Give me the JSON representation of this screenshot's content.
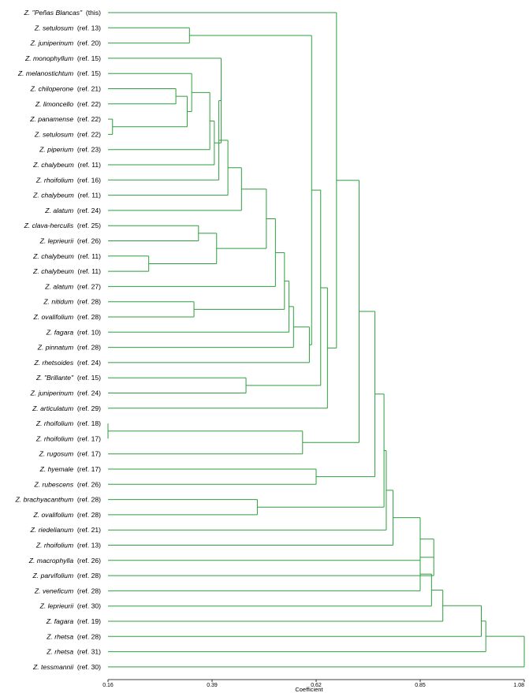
{
  "chart_data": {
    "type": "dendrogram",
    "xlabel": "Coefficient",
    "xlim": [
      0.16,
      1.08
    ],
    "ticks": [
      "0.16",
      "0.39",
      "0.62",
      "0.85",
      "1.08"
    ],
    "line_color": "#2e9e3e",
    "leaves": [
      {
        "sp": "Z. \"Peñas Blancas\"",
        "ref": "(this)"
      },
      {
        "sp": "Z. setulosum",
        "ref": "(ref. 13)"
      },
      {
        "sp": "Z. juniperinum",
        "ref": "(ref. 20)"
      },
      {
        "sp": "Z. monophyllum",
        "ref": "(ref. 15)"
      },
      {
        "sp": "Z. melanostichtum",
        "ref": "(ref. 15)"
      },
      {
        "sp": "Z. chiloperone",
        "ref": "(ref. 21)"
      },
      {
        "sp": "Z. limoncello",
        "ref": "(ref. 22)"
      },
      {
        "sp": "Z. panamense",
        "ref": "(ref. 22)"
      },
      {
        "sp": "Z. setulosum",
        "ref": "(ref. 22)"
      },
      {
        "sp": "Z. piperium",
        "ref": "(ref. 23)"
      },
      {
        "sp": "Z. chalybeum",
        "ref": "(ref. 11)"
      },
      {
        "sp": "Z. rhoifolium",
        "ref": "(ref. 16)"
      },
      {
        "sp": "Z. chalybeum",
        "ref": "(ref. 11)"
      },
      {
        "sp": "Z. alatum",
        "ref": "(ref. 24)"
      },
      {
        "sp": "Z. clava-herculis",
        "ref": "(ref. 25)"
      },
      {
        "sp": "Z. leprieurii",
        "ref": "(ref. 26)"
      },
      {
        "sp": "Z. chalybeum",
        "ref": "(ref. 11)"
      },
      {
        "sp": "Z. chalybeum",
        "ref": "(ref. 11)"
      },
      {
        "sp": "Z. alatum",
        "ref": "(ref. 27)"
      },
      {
        "sp": "Z. nitidum",
        "ref": "(ref. 28)"
      },
      {
        "sp": "Z. ovalifolium",
        "ref": "(ref. 28)"
      },
      {
        "sp": "Z. fagara",
        "ref": "(ref. 10)"
      },
      {
        "sp": "Z. pinnatum",
        "ref": "(ref. 28)"
      },
      {
        "sp": "Z. rhetsoides",
        "ref": "(ref. 24)"
      },
      {
        "sp": "Z. \"Brillante\"",
        "ref": "(ref. 15)"
      },
      {
        "sp": "Z. juniperinum",
        "ref": "(ref. 24)"
      },
      {
        "sp": "Z. articulatum",
        "ref": "(ref. 29)"
      },
      {
        "sp": "Z. rhoifolium",
        "ref": "(ref. 18)"
      },
      {
        "sp": "Z. rhoifolium",
        "ref": "(ref. 17)"
      },
      {
        "sp": "Z. rugosum",
        "ref": "(ref. 17)"
      },
      {
        "sp": "Z. hyemale",
        "ref": "(ref. 17)"
      },
      {
        "sp": "Z. rubescens",
        "ref": "(ref. 26)"
      },
      {
        "sp": "Z. brachyacanthum",
        "ref": "(ref. 28)"
      },
      {
        "sp": "Z. ovalifolium",
        "ref": "(ref. 28)"
      },
      {
        "sp": "Z. riedelianum",
        "ref": "(ref. 21)"
      },
      {
        "sp": "Z. rhoifolium",
        "ref": "(ref. 13)"
      },
      {
        "sp": "Z. macrophylla",
        "ref": "(ref. 26)"
      },
      {
        "sp": "Z. parvifolium",
        "ref": "(ref. 28)"
      },
      {
        "sp": "Z. veneficum",
        "ref": "(ref. 28)"
      },
      {
        "sp": "Z. leprieurii",
        "ref": "(ref. 30)"
      },
      {
        "sp": "Z. fagara",
        "ref": "(ref. 19)"
      },
      {
        "sp": "Z. rhetsa",
        "ref": "(ref. 28)"
      },
      {
        "sp": "Z. rhetsa",
        "ref": "(ref. 31)"
      },
      {
        "sp": "Z. tessmannii",
        "ref": "(ref. 30)"
      }
    ],
    "merges": [
      {
        "a": "L7",
        "b": "L8",
        "h": 0.17
      },
      {
        "a": "L27",
        "b": "L28",
        "h": 0.16
      },
      {
        "a": "L16",
        "b": "L17",
        "h": 0.25
      },
      {
        "a": "L5",
        "b": "L6",
        "h": 0.31
      },
      {
        "a": "L1",
        "b": "L2",
        "h": 0.34
      },
      {
        "a": "L19",
        "b": "L20",
        "h": 0.35
      },
      {
        "a": "M3",
        "b": "M0",
        "h": 0.335
      },
      {
        "a": "M6",
        "b": "L4",
        "h": 0.345
      },
      {
        "a": "L14",
        "b": "L15",
        "h": 0.36
      },
      {
        "a": "M7",
        "b": "L9",
        "h": 0.385
      },
      {
        "a": "M9",
        "b": "L10",
        "h": 0.395
      },
      {
        "a": "M8",
        "b": "M2",
        "h": 0.4
      },
      {
        "a": "M10",
        "b": "L3",
        "h": 0.41
      },
      {
        "a": "M12",
        "b": "L11",
        "h": 0.405
      },
      {
        "a": "M13",
        "b": "L12",
        "h": 0.425
      },
      {
        "a": "M14",
        "b": "L13",
        "h": 0.455
      },
      {
        "a": "L24",
        "b": "L25",
        "h": 0.465
      },
      {
        "a": "L32",
        "b": "L33",
        "h": 0.49
      },
      {
        "a": "M15",
        "b": "M11",
        "h": 0.51
      },
      {
        "a": "M18",
        "b": "L18",
        "h": 0.53
      },
      {
        "a": "M19",
        "b": "M5",
        "h": 0.55
      },
      {
        "a": "M20",
        "b": "L21",
        "h": 0.56
      },
      {
        "a": "M21",
        "b": "L22",
        "h": 0.57
      },
      {
        "a": "M1",
        "b": "L29",
        "h": 0.59
      },
      {
        "a": "M22",
        "b": "L23",
        "h": 0.605
      },
      {
        "a": "M24",
        "b": "M4",
        "h": 0.61
      },
      {
        "a": "L30",
        "b": "L31",
        "h": 0.62
      },
      {
        "a": "M25",
        "b": "M16",
        "h": 0.63
      },
      {
        "a": "M27",
        "b": "L26",
        "h": 0.645
      },
      {
        "a": "L0",
        "b": "M28",
        "h": 0.665
      },
      {
        "a": "M29",
        "b": "M23",
        "h": 0.715
      },
      {
        "a": "M30",
        "b": "M26",
        "h": 0.75
      },
      {
        "a": "M31",
        "b": "M17",
        "h": 0.77
      },
      {
        "a": "M32",
        "b": "L34",
        "h": 0.775
      },
      {
        "a": "M33",
        "b": "L35",
        "h": 0.79
      },
      {
        "a": "M34",
        "b": "L36",
        "h": 0.85
      },
      {
        "a": "M35",
        "b": "L37",
        "h": 0.88
      },
      {
        "a": "M36",
        "b": "L38",
        "h": 0.85
      },
      {
        "a": "M37",
        "b": "L39",
        "h": 0.875
      },
      {
        "a": "M38",
        "b": "L40",
        "h": 0.9
      },
      {
        "a": "M39",
        "b": "L41",
        "h": 0.985
      },
      {
        "a": "M40",
        "b": "L42",
        "h": 0.995
      },
      {
        "a": "M41",
        "b": "L43",
        "h": 1.08
      }
    ]
  }
}
